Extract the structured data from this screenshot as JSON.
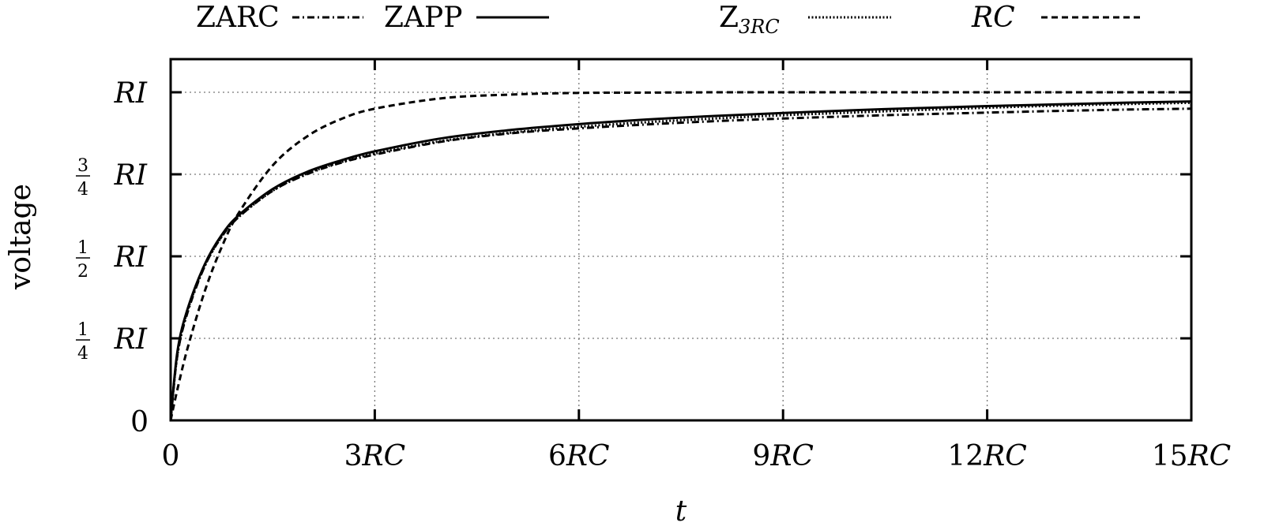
{
  "chart_data": {
    "type": "line",
    "title": "",
    "xlabel": "t",
    "ylabel": "voltage",
    "xlim": [
      0,
      15
    ],
    "ylim": [
      0,
      1
    ],
    "x_unit": "RC",
    "y_unit": "RI",
    "grid": true,
    "legend_position": "top",
    "x_ticks": [
      {
        "value": 0,
        "label": "0"
      },
      {
        "value": 3,
        "label": "3RC"
      },
      {
        "value": 6,
        "label": "6RC"
      },
      {
        "value": 9,
        "label": "9RC"
      },
      {
        "value": 12,
        "label": "12RC"
      },
      {
        "value": 15,
        "label": "15RC"
      }
    ],
    "y_ticks": [
      {
        "value": 0,
        "label": "0"
      },
      {
        "value": 0.25,
        "label": "1/4 RI"
      },
      {
        "value": 0.5,
        "label": "1/2 RI"
      },
      {
        "value": 0.75,
        "label": "3/4 RI"
      },
      {
        "value": 1,
        "label": "RI"
      }
    ],
    "x": [
      0,
      0.1,
      0.25,
      0.5,
      0.75,
      1,
      1.5,
      2,
      2.5,
      3,
      4,
      5,
      6,
      7,
      8,
      9,
      10,
      11,
      12,
      13,
      14,
      15
    ],
    "series": [
      {
        "name": "ZARC",
        "style": "dash-dot",
        "values": [
          0,
          0.2,
          0.33,
          0.47,
          0.56,
          0.62,
          0.7,
          0.75,
          0.785,
          0.81,
          0.85,
          0.875,
          0.89,
          0.902,
          0.912,
          0.92,
          0.927,
          0.933,
          0.938,
          0.943,
          0.947,
          0.95
        ]
      },
      {
        "name": "ZAPP",
        "style": "solid",
        "values": [
          0,
          0.21,
          0.34,
          0.475,
          0.565,
          0.625,
          0.705,
          0.757,
          0.792,
          0.82,
          0.86,
          0.885,
          0.903,
          0.917,
          0.928,
          0.937,
          0.945,
          0.952,
          0.958,
          0.963,
          0.968,
          0.972
        ]
      },
      {
        "name": "Z3RC",
        "style": "dotted",
        "values": [
          0,
          0.2,
          0.335,
          0.47,
          0.56,
          0.62,
          0.7,
          0.752,
          0.787,
          0.813,
          0.852,
          0.877,
          0.895,
          0.909,
          0.92,
          0.93,
          0.938,
          0.946,
          0.953,
          0.959,
          0.964,
          0.968
        ]
      },
      {
        "name": "RC",
        "style": "dashed",
        "values": [
          0,
          0.095,
          0.221,
          0.393,
          0.528,
          0.632,
          0.777,
          0.865,
          0.918,
          0.95,
          0.982,
          0.993,
          0.998,
          0.999,
          1,
          1,
          1,
          1,
          1,
          1,
          1,
          1
        ]
      }
    ]
  },
  "legend": [
    {
      "label": "ZARC",
      "style": "dash-dot"
    },
    {
      "label": "ZAPP",
      "style": "solid"
    },
    {
      "label": "Z",
      "sub": "3RC",
      "style": "dotted"
    },
    {
      "label": "RC",
      "style": "dashed",
      "italic": true
    }
  ],
  "axes": {
    "xlabel": "t",
    "ylabel": "voltage",
    "x_tick_labels": [
      {
        "num": "0",
        "unit": ""
      },
      {
        "num": "3",
        "unit": "RC"
      },
      {
        "num": "6",
        "unit": "RC"
      },
      {
        "num": "9",
        "unit": "RC"
      },
      {
        "num": "12",
        "unit": "RC"
      },
      {
        "num": "15",
        "unit": "RC"
      }
    ],
    "y_tick_labels": [
      {
        "num": "",
        "den": "",
        "unit": "0"
      },
      {
        "num": "1",
        "den": "4",
        "unit": "RI"
      },
      {
        "num": "1",
        "den": "2",
        "unit": "RI"
      },
      {
        "num": "3",
        "den": "4",
        "unit": "RI"
      },
      {
        "num": "",
        "den": "",
        "unit": "RI"
      }
    ]
  }
}
